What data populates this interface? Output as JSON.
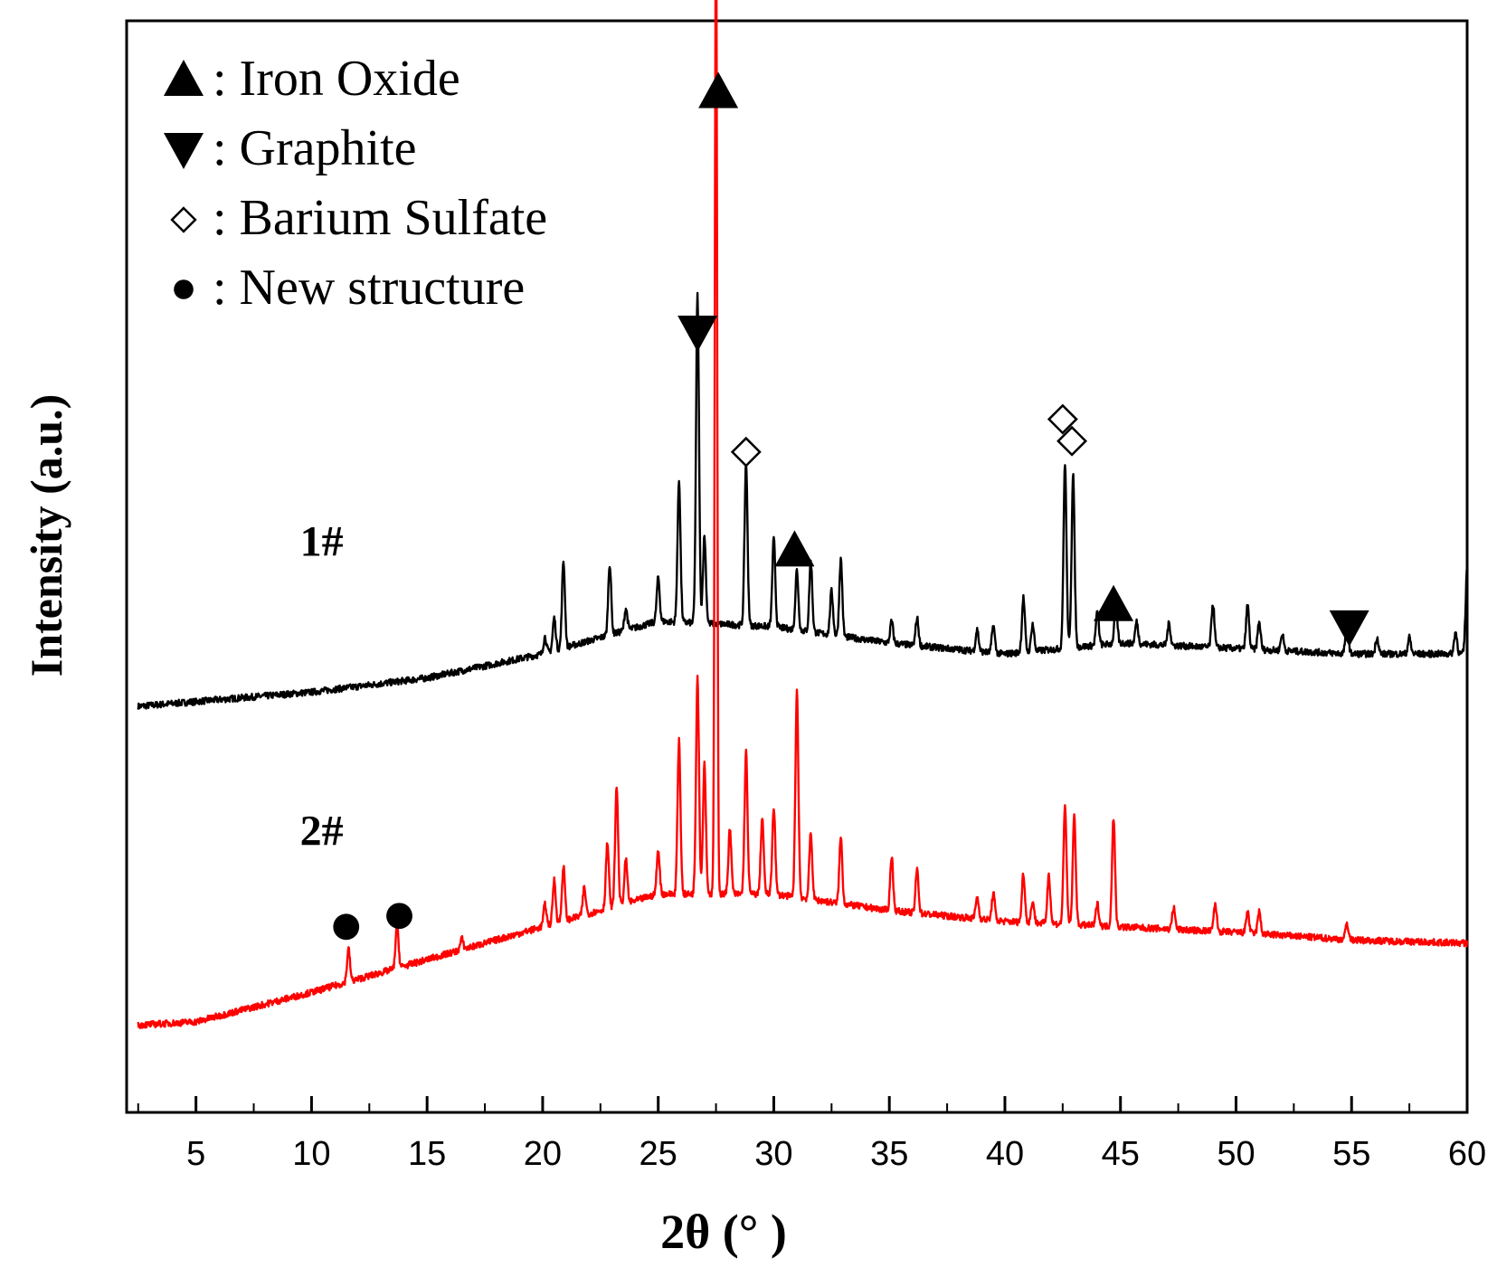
{
  "chart_data": {
    "type": "line",
    "xlabel": "2θ (° )",
    "ylabel": "Intensity (a.u.)",
    "xlim": [
      2,
      60
    ],
    "ylim": [
      0,
      1
    ],
    "x_ticks": [
      5,
      10,
      15,
      20,
      25,
      30,
      35,
      40,
      45,
      50,
      55,
      60
    ],
    "x_ticks_minor": [
      2.5,
      7.5,
      12.5,
      17.5,
      22.5,
      27.5,
      32.5,
      37.5,
      42.5,
      47.5,
      52.5,
      57.5
    ],
    "y_ticks_shown": false,
    "legend": {
      "placement": "top-left",
      "entries": [
        {
          "marker": "triangle-up",
          "label": ": Iron Oxide"
        },
        {
          "marker": "triangle-down",
          "label": ": Graphite"
        },
        {
          "marker": "diamond-open",
          "label": ": Barium Sulfate"
        },
        {
          "marker": "circle",
          "label": ": New structure"
        }
      ]
    },
    "series": [
      {
        "name": "1#",
        "color": "#000000",
        "baseline": [
          [
            2.5,
            0.372
          ],
          [
            10,
            0.385
          ],
          [
            15,
            0.398
          ],
          [
            20,
            0.42
          ],
          [
            25,
            0.45
          ],
          [
            30,
            0.445
          ],
          [
            35,
            0.43
          ],
          [
            40,
            0.42
          ],
          [
            45,
            0.43
          ],
          [
            50,
            0.425
          ],
          [
            55,
            0.42
          ],
          [
            60,
            0.42
          ]
        ],
        "peaks": [
          [
            20.1,
            0.015
          ],
          [
            20.5,
            0.03
          ],
          [
            20.9,
            0.08
          ],
          [
            22.9,
            0.065
          ],
          [
            23.6,
            0.02
          ],
          [
            25.0,
            0.04
          ],
          [
            25.9,
            0.13
          ],
          [
            26.7,
            0.3
          ],
          [
            27.0,
            0.08
          ],
          [
            28.8,
            0.15
          ],
          [
            30.0,
            0.08
          ],
          [
            31.0,
            0.055
          ],
          [
            31.6,
            0.065
          ],
          [
            32.5,
            0.04
          ],
          [
            32.9,
            0.07
          ],
          [
            35.1,
            0.02
          ],
          [
            36.2,
            0.025
          ],
          [
            38.8,
            0.02
          ],
          [
            39.5,
            0.025
          ],
          [
            40.8,
            0.05
          ],
          [
            41.2,
            0.025
          ],
          [
            42.6,
            0.17
          ],
          [
            42.95,
            0.16
          ],
          [
            44.0,
            0.03
          ],
          [
            44.8,
            0.035
          ],
          [
            45.7,
            0.02
          ],
          [
            47.1,
            0.02
          ],
          [
            49.0,
            0.04
          ],
          [
            50.5,
            0.04
          ],
          [
            51.0,
            0.025
          ],
          [
            52.0,
            0.015
          ],
          [
            54.8,
            0.03
          ],
          [
            56.1,
            0.015
          ],
          [
            57.5,
            0.015
          ],
          [
            59.5,
            0.02
          ],
          [
            60.0,
            0.08
          ]
        ]
      },
      {
        "name": "2#",
        "color": "#ff0000",
        "baseline": [
          [
            2.5,
            0.08
          ],
          [
            5,
            0.083
          ],
          [
            10,
            0.11
          ],
          [
            15,
            0.14
          ],
          [
            20,
            0.17
          ],
          [
            25,
            0.2
          ],
          [
            30,
            0.2
          ],
          [
            35,
            0.185
          ],
          [
            40,
            0.175
          ],
          [
            45,
            0.17
          ],
          [
            50,
            0.165
          ],
          [
            55,
            0.158
          ],
          [
            60,
            0.155
          ]
        ],
        "peaks": [
          [
            11.6,
            0.03
          ],
          [
            13.7,
            0.04
          ],
          [
            16.5,
            0.01
          ],
          [
            20.1,
            0.02
          ],
          [
            20.5,
            0.04
          ],
          [
            20.9,
            0.05
          ],
          [
            21.8,
            0.025
          ],
          [
            22.8,
            0.06
          ],
          [
            23.2,
            0.11
          ],
          [
            23.6,
            0.04
          ],
          [
            25.0,
            0.04
          ],
          [
            25.9,
            0.14
          ],
          [
            26.7,
            0.2
          ],
          [
            27.0,
            0.12
          ],
          [
            27.5,
            0.91
          ],
          [
            28.1,
            0.06
          ],
          [
            28.8,
            0.13
          ],
          [
            29.5,
            0.07
          ],
          [
            30.0,
            0.08
          ],
          [
            31.0,
            0.19
          ],
          [
            31.6,
            0.06
          ],
          [
            32.9,
            0.06
          ],
          [
            35.1,
            0.05
          ],
          [
            36.2,
            0.04
          ],
          [
            38.8,
            0.02
          ],
          [
            39.5,
            0.025
          ],
          [
            40.8,
            0.045
          ],
          [
            41.2,
            0.02
          ],
          [
            41.9,
            0.045
          ],
          [
            42.6,
            0.11
          ],
          [
            43.0,
            0.1
          ],
          [
            44.0,
            0.02
          ],
          [
            44.7,
            0.1
          ],
          [
            47.3,
            0.02
          ],
          [
            49.1,
            0.025
          ],
          [
            50.5,
            0.02
          ],
          [
            51.0,
            0.02
          ],
          [
            54.8,
            0.015
          ]
        ]
      }
    ],
    "sample_labels": [
      {
        "text": "1#",
        "x": 9.5,
        "y": 0.51
      },
      {
        "text": "2#",
        "x": 9.5,
        "y": 0.245
      }
    ],
    "annotations": [
      {
        "marker": "triangle-up",
        "x": 27.6,
        "y": 0.935,
        "meaning": "Iron Oxide"
      },
      {
        "marker": "triangle-down",
        "x": 26.7,
        "y": 0.715,
        "meaning": "Graphite"
      },
      {
        "marker": "diamond-open",
        "x": 28.8,
        "y": 0.605,
        "meaning": "Barium Sulfate"
      },
      {
        "marker": "triangle-up",
        "x": 30.9,
        "y": 0.515,
        "meaning": "Iron Oxide"
      },
      {
        "marker": "diamond-open",
        "x": 42.5,
        "y": 0.635,
        "meaning": "Barium Sulfate"
      },
      {
        "marker": "diamond-open",
        "x": 42.9,
        "y": 0.615,
        "meaning": "Barium Sulfate"
      },
      {
        "marker": "triangle-up",
        "x": 44.7,
        "y": 0.465,
        "meaning": "Iron Oxide"
      },
      {
        "marker": "triangle-down",
        "x": 54.9,
        "y": 0.445,
        "meaning": "Graphite"
      },
      {
        "marker": "circle",
        "x": 11.5,
        "y": 0.17,
        "meaning": "New structure"
      },
      {
        "marker": "circle",
        "x": 13.8,
        "y": 0.18,
        "meaning": "New structure"
      }
    ]
  }
}
